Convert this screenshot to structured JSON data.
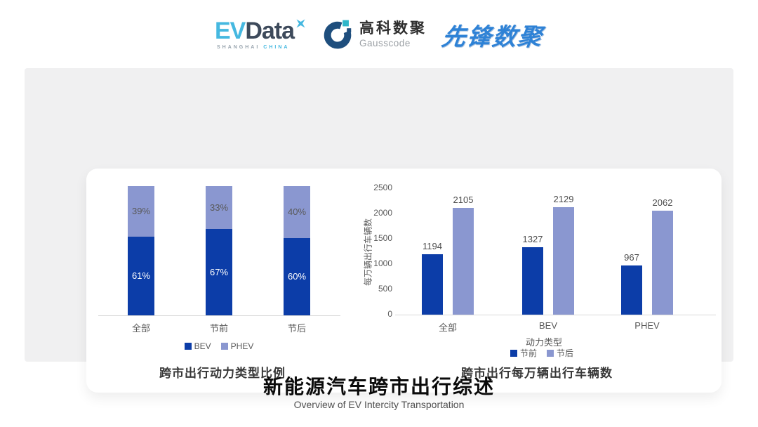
{
  "header": {
    "evdata": {
      "ev": "EV",
      "data": "Data",
      "sub_left": "SHANGHAI",
      "sub_right": "CHINA"
    },
    "gausscode": {
      "cn": "高科数聚",
      "en": "Gausscode"
    },
    "xianfeng": {
      "text": "先锋数聚"
    }
  },
  "chart_data": [
    {
      "type": "bar",
      "subtype": "stacked-100percent",
      "title": "跨市出行动力类型比例",
      "categories": [
        "全部",
        "节前",
        "节后"
      ],
      "series": [
        {
          "name": "BEV",
          "color": "#0C3DA8",
          "values": [
            61,
            67,
            60
          ],
          "labels": [
            "61%",
            "67%",
            "60%"
          ],
          "label_color": "#FFFFFF"
        },
        {
          "name": "PHEV",
          "color": "#8A97D0",
          "values": [
            39,
            33,
            40
          ],
          "labels": [
            "39%",
            "33%",
            "40%"
          ],
          "label_color": "#595959"
        }
      ],
      "ylim": [
        0,
        100
      ],
      "grid": false,
      "legend_position": "bottom"
    },
    {
      "type": "bar",
      "subtype": "grouped",
      "title": "跨市出行每万辆出行车辆数",
      "xlabel": "动力类型",
      "ylabel": "每万辆出行车辆数",
      "categories": [
        "全部",
        "BEV",
        "PHEV"
      ],
      "series": [
        {
          "name": "节前",
          "color": "#0C3DA8",
          "values": [
            1194,
            1327,
            967
          ]
        },
        {
          "name": "节后",
          "color": "#8A97D0",
          "values": [
            2105,
            2129,
            2062
          ]
        }
      ],
      "ylim": [
        0,
        2500
      ],
      "yticks": [
        0,
        500,
        1000,
        1500,
        2000,
        2500
      ],
      "grid": false,
      "legend_position": "bottom"
    }
  ],
  "footer": {
    "title": "新能源汽车跨市出行综述",
    "subtitle": "Overview of EV Intercity Transportation"
  },
  "colors": {
    "bev_dark": "#0C3DA8",
    "phev_light": "#8A97D0",
    "axis_line": "#D9D9D9",
    "tick_text": "#595959",
    "panel_bg": "#F0F0F1",
    "card_bg": "#FFFFFF"
  }
}
